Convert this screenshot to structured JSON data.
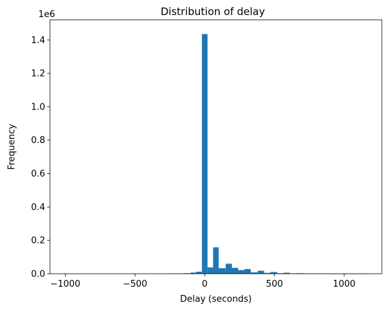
{
  "chart_data": {
    "type": "bar",
    "title": "Distribution of delay",
    "xlabel": "Delay (seconds)",
    "ylabel": "Frequency",
    "y_offset_label": "1e6",
    "xlim": [
      -1110,
      1270
    ],
    "ylim": [
      0,
      1.52
    ],
    "x_ticks": [
      -1000,
      -500,
      0,
      500,
      1000
    ],
    "x_tick_labels": [
      "−1000",
      "−500",
      "0",
      "500",
      "1000"
    ],
    "y_ticks": [
      0.0,
      0.2,
      0.4,
      0.6,
      0.8,
      1.0,
      1.2,
      1.4
    ],
    "y_tick_labels": [
      "0.0",
      "0.2",
      "0.4",
      "0.6",
      "0.8",
      "1.0",
      "1.2",
      "1.4"
    ],
    "bar_color": "#1f77b4",
    "grid": false,
    "bins": [
      {
        "x0": -1000,
        "x1": -950,
        "value": 0
      },
      {
        "x0": -950,
        "x1": -900,
        "value": 0
      },
      {
        "x0": -900,
        "x1": -850,
        "value": 0
      },
      {
        "x0": -850,
        "x1": -800,
        "value": 0
      },
      {
        "x0": -800,
        "x1": -750,
        "value": 0
      },
      {
        "x0": -750,
        "x1": -700,
        "value": 0
      },
      {
        "x0": -700,
        "x1": -650,
        "value": 0
      },
      {
        "x0": -650,
        "x1": -600,
        "value": 0
      },
      {
        "x0": -600,
        "x1": -550,
        "value": 0
      },
      {
        "x0": -550,
        "x1": -500,
        "value": 0
      },
      {
        "x0": -500,
        "x1": -450,
        "value": 0
      },
      {
        "x0": -450,
        "x1": -400,
        "value": 0
      },
      {
        "x0": -400,
        "x1": -350,
        "value": 0
      },
      {
        "x0": -350,
        "x1": -300,
        "value": 0
      },
      {
        "x0": -300,
        "x1": -250,
        "value": 0
      },
      {
        "x0": -250,
        "x1": -200,
        "value": 0.002
      },
      {
        "x0": -200,
        "x1": -150,
        "value": 0.002
      },
      {
        "x0": -150,
        "x1": -100,
        "value": 0.003
      },
      {
        "x0": -100,
        "x1": -60,
        "value": 0.007
      },
      {
        "x0": -60,
        "x1": -20,
        "value": 0.012
      },
      {
        "x0": -20,
        "x1": 20,
        "value": 1.435
      },
      {
        "x0": 20,
        "x1": 60,
        "value": 0.038
      },
      {
        "x0": 60,
        "x1": 100,
        "value": 0.158
      },
      {
        "x0": 100,
        "x1": 150,
        "value": 0.033
      },
      {
        "x0": 150,
        "x1": 195,
        "value": 0.06
      },
      {
        "x0": 195,
        "x1": 240,
        "value": 0.035
      },
      {
        "x0": 240,
        "x1": 285,
        "value": 0.022
      },
      {
        "x0": 285,
        "x1": 330,
        "value": 0.028
      },
      {
        "x0": 330,
        "x1": 380,
        "value": 0.008
      },
      {
        "x0": 380,
        "x1": 425,
        "value": 0.018
      },
      {
        "x0": 425,
        "x1": 470,
        "value": 0.005
      },
      {
        "x0": 470,
        "x1": 520,
        "value": 0.01
      },
      {
        "x0": 520,
        "x1": 565,
        "value": 0.003
      },
      {
        "x0": 565,
        "x1": 610,
        "value": 0.006
      },
      {
        "x0": 610,
        "x1": 660,
        "value": 0.002
      },
      {
        "x0": 660,
        "x1": 710,
        "value": 0.003
      },
      {
        "x0": 710,
        "x1": 760,
        "value": 0.002
      },
      {
        "x0": 760,
        "x1": 810,
        "value": 0.002
      },
      {
        "x0": 810,
        "x1": 860,
        "value": 0.002
      },
      {
        "x0": 860,
        "x1": 910,
        "value": 0.002
      },
      {
        "x0": 910,
        "x1": 960,
        "value": 0.001
      },
      {
        "x0": 960,
        "x1": 1010,
        "value": 0.001
      },
      {
        "x0": 1010,
        "x1": 1060,
        "value": 0.001
      },
      {
        "x0": 1060,
        "x1": 1110,
        "value": 0.001
      },
      {
        "x0": 1110,
        "x1": 1170,
        "value": 0.001
      }
    ]
  }
}
